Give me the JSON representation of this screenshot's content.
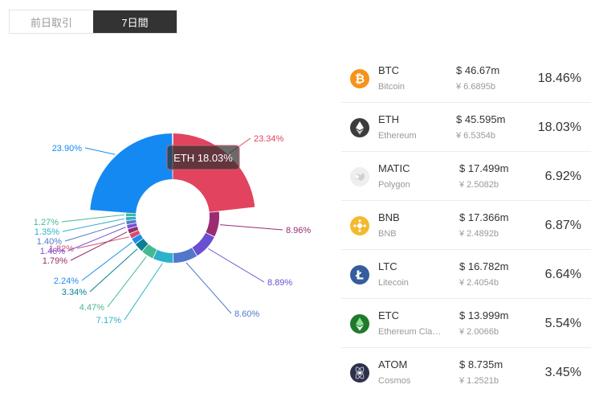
{
  "tabs": [
    {
      "label": "前日取引",
      "active": false
    },
    {
      "label": "7日間",
      "active": true
    }
  ],
  "tooltip": {
    "text": "ETH 18.03%"
  },
  "chart_data": {
    "type": "pie",
    "donut": true,
    "slices": [
      {
        "label": "23.34%",
        "value": 23.34,
        "color": "#e2435e"
      },
      {
        "label": "8.96%",
        "value": 8.96,
        "color": "#9b2c73"
      },
      {
        "label": "8.89%",
        "value": 8.89,
        "color": "#6a4fd2"
      },
      {
        "label": "8.60%",
        "value": 8.6,
        "color": "#5177cc"
      },
      {
        "label": "7.17%",
        "value": 7.17,
        "color": "#2cb1cd"
      },
      {
        "label": "4.47%",
        "value": 4.47,
        "color": "#45b98f"
      },
      {
        "label": "3.34%",
        "value": 3.34,
        "color": "#0b7f93"
      },
      {
        "label": "2.24%",
        "value": 2.24,
        "color": "#1d8cec"
      },
      {
        "label": "1.82%",
        "value": 1.82,
        "color": "#d84c6c"
      },
      {
        "label": "1.79%",
        "value": 1.79,
        "color": "#952e69"
      },
      {
        "label": "1.46%",
        "value": 1.46,
        "color": "#7650d6"
      },
      {
        "label": "1.40%",
        "value": 1.4,
        "color": "#5379c9"
      },
      {
        "label": "1.35%",
        "value": 1.35,
        "color": "#2cb0cc"
      },
      {
        "label": "1.27%",
        "value": 1.27,
        "color": "#45b98f"
      },
      {
        "label": "23.90%",
        "value": 23.9,
        "color": "#1489f2"
      }
    ]
  },
  "coins": [
    {
      "symbol": "BTC",
      "name": "Bitcoin",
      "usd": "$ 46.67m",
      "cny": "¥ 6.6895b",
      "pct": "18.46%",
      "icon": "bitcoin-icon",
      "color": "#f7931a"
    },
    {
      "symbol": "ETH",
      "name": "Ethereum",
      "usd": "$ 45.595m",
      "cny": "¥ 6.5354b",
      "pct": "18.03%",
      "icon": "ethereum-icon",
      "color": "#3c3c3d"
    },
    {
      "symbol": "MATIC",
      "name": "Polygon",
      "usd": "$ 17.499m",
      "cny": "¥ 2.5082b",
      "pct": "6.92%",
      "icon": "polygon-icon",
      "color": "#dddddd"
    },
    {
      "symbol": "BNB",
      "name": "BNB",
      "usd": "$ 17.366m",
      "cny": "¥ 2.4892b",
      "pct": "6.87%",
      "icon": "bnb-icon",
      "color": "#f3ba2f"
    },
    {
      "symbol": "LTC",
      "name": "Litecoin",
      "usd": "$ 16.782m",
      "cny": "¥ 2.4054b",
      "pct": "6.64%",
      "icon": "litecoin-icon",
      "color": "#345d9d"
    },
    {
      "symbol": "ETC",
      "name": "Ethereum Classic",
      "usd": "$ 13.999m",
      "cny": "¥ 2.0066b",
      "pct": "5.54%",
      "icon": "ethereum-classic-icon",
      "color": "#3ab83a"
    },
    {
      "symbol": "ATOM",
      "name": "Cosmos",
      "usd": "$ 8.735m",
      "cny": "¥ 1.2521b",
      "pct": "3.45%",
      "icon": "cosmos-icon",
      "color": "#2e3148"
    }
  ]
}
